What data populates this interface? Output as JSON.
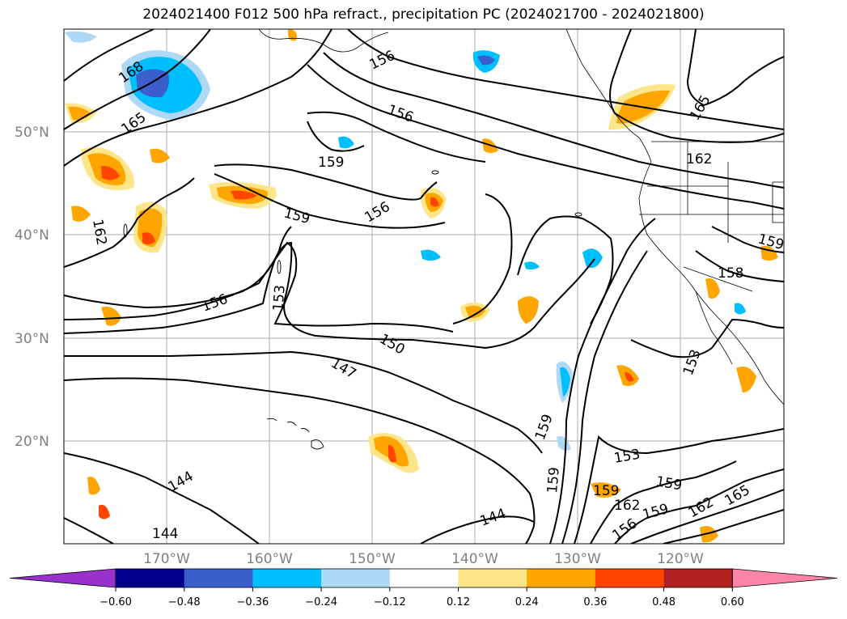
{
  "title": "2024021400 F012 500 hPa refract., precipitation PC (2024021700 - 2024021800)",
  "lat_labels": [
    "50°N",
    "40°N",
    "30°N",
    "20°N"
  ],
  "lon_labels": [
    "170°W",
    "160°W",
    "150°W",
    "140°W",
    "130°W",
    "120°W"
  ],
  "contour_labels": [
    "168",
    "165",
    "156",
    "156",
    "165",
    "159",
    "156",
    "159",
    "162",
    "162",
    "159",
    "156",
    "153",
    "150",
    "147",
    "158",
    "153",
    "159",
    "153",
    "159",
    "159",
    "159",
    "162",
    "165",
    "144",
    "144",
    "144",
    "156",
    "162",
    "159"
  ],
  "colorbar": {
    "ticks": [
      "−0.60",
      "−0.48",
      "−0.36",
      "−0.24",
      "−0.12",
      "0.12",
      "0.24",
      "0.36",
      "0.48",
      "0.60"
    ],
    "colors": [
      "#9932cc",
      "#00008b",
      "#3a5fcd",
      "#00bfff",
      "#add8f6",
      "#ffffff",
      "#fde68a",
      "#ffa500",
      "#ff4500",
      "#b22222",
      "#ff85a8"
    ]
  },
  "colors": {
    "contour": "#000000",
    "grid": "#999999",
    "positive_light": "#fde68a",
    "positive_mid": "#ffa500",
    "positive_strong": "#ff4500",
    "negative_light": "#add8f6",
    "negative_mid": "#00bfff",
    "negative_strong": "#3a5fcd"
  }
}
